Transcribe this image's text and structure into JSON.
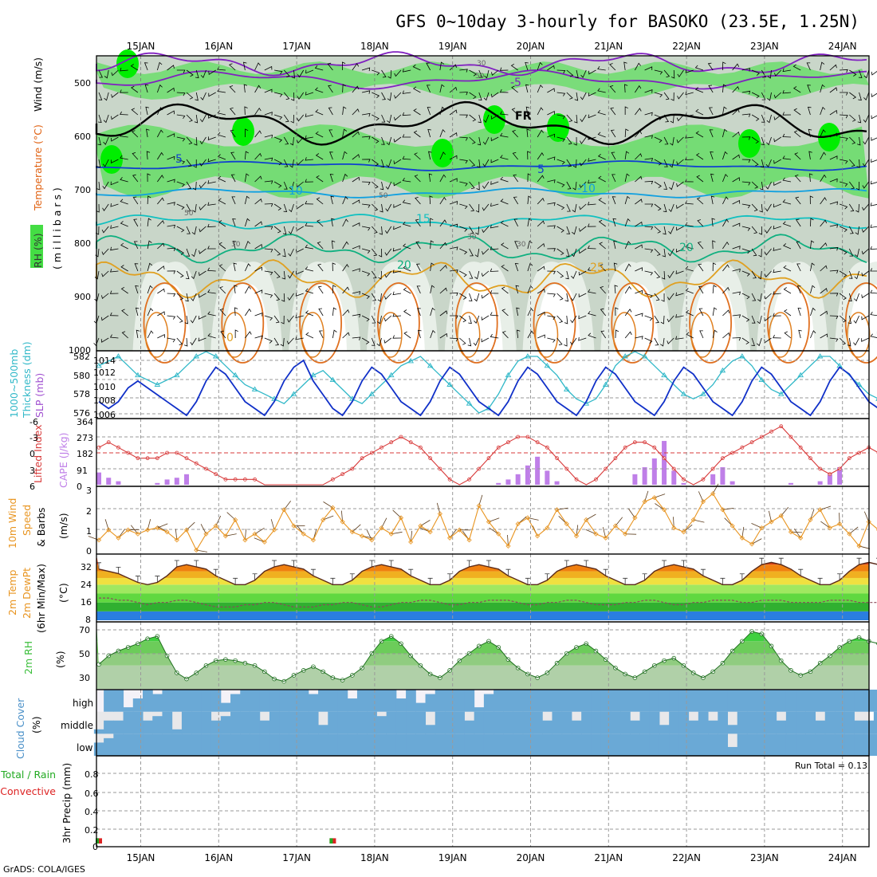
{
  "title": "GFS 0~10day 3-hourly for BASOKO (23.5E, 1.25N)",
  "footer": "GrADS: COLA/IGES",
  "dates": [
    "15JAN",
    "16JAN",
    "17JAN",
    "18JAN",
    "19JAN",
    "20JAN",
    "21JAN",
    "22JAN",
    "23JAN",
    "24JAN"
  ],
  "colors": {
    "frame": "#000000",
    "grid": "#9a9a9a",
    "rh_dark": "#b4c7b4",
    "rh_mid": "#cfe0cf",
    "rh_green": "#66dd66",
    "rh_bright": "#00ee00",
    "lifted": "#d83a3a",
    "cape": "#bf7fe8",
    "thickness": "#30b8c8",
    "slp": "#1030c8",
    "wind": "#e8941f",
    "cloud": "#6aa9d6",
    "rh2m": "#3cbf3c",
    "precip_rain": "#22aa22",
    "precip_conv": "#dd2222"
  },
  "panels": {
    "upper": {
      "labels": {
        "rh": "RH (%)",
        "temp": "Temperature (°C)",
        "wind": "Wind (m/s)",
        "pressure": "( m i l l i b a r s )"
      },
      "y_ticks": [
        "500",
        "600",
        "700",
        "800",
        "900",
        "1000"
      ],
      "contour_labels": {
        "fr": "FR",
        "m5": "-5",
        "t5a": "5",
        "t5b": "5",
        "t10a": "10",
        "t10b": "-10",
        "t15": "15",
        "t20a": "20",
        "t20b": "20",
        "t25": "25",
        "t0": "0",
        "rh30a": "30",
        "rh50a": "50",
        "rh50b": "50",
        "rh30b": "30",
        "rh30c": "30",
        "rh50c": "50",
        "rh30d": "30"
      }
    },
    "thickness": {
      "label_a": "1000~500mb",
      "label_b": "Thickness (dm)",
      "label_c": "SLP (mb)",
      "left_ticks": [
        "582",
        "580",
        "578",
        "576"
      ],
      "right_ticks": [
        "1014",
        "1012",
        "1010",
        "1008",
        "1006"
      ]
    },
    "lifted": {
      "label_a": "Lifted Index",
      "label_b": "CAPE (J/kg)",
      "left_ticks": [
        "-6",
        "-3",
        "0",
        "3",
        "6"
      ],
      "right_ticks": [
        "364",
        "273",
        "182",
        "91",
        "0"
      ]
    },
    "wind10": {
      "label_a": "10m Wind",
      "label_b": "Speed",
      "label_c": "& Barbs",
      "unit": "(m/s)",
      "ticks": [
        "3",
        "2",
        "1",
        "0"
      ]
    },
    "temp2m": {
      "label_a": "2m Temp",
      "label_b": "2m DewPt",
      "label_c": "(6hr Min/Max)",
      "unit": "(°C)",
      "ticks": [
        "32",
        "24",
        "16",
        "8"
      ]
    },
    "rh2m": {
      "label": "2m RH",
      "unit": "(%)",
      "ticks": [
        "70",
        "50",
        "30"
      ]
    },
    "cloud": {
      "label": "Cloud Cover",
      "unit": "(%)",
      "levels": [
        "high",
        "middle",
        "low"
      ]
    },
    "precip": {
      "label_a": "Total / Rain",
      "label_b": "Convective",
      "label_c": "3hr Precip (mm)",
      "run_total": "Run Total = 0.13",
      "ticks": [
        "0.8",
        "0.6",
        "0.4",
        "0.2",
        "0"
      ]
    }
  },
  "chart_data": {
    "type": "meteogram",
    "x": {
      "start": "15JAN",
      "step_hours": 3,
      "steps": 81
    },
    "temp2m_series": [
      {
        "name": "Max",
        "values": [
          31,
          30,
          29,
          27,
          25,
          24,
          25,
          28,
          32,
          33,
          32,
          31,
          28,
          26,
          24,
          24,
          26,
          30,
          32,
          33,
          32,
          31,
          28,
          26,
          24,
          24,
          26,
          30,
          32,
          33,
          32,
          31,
          28,
          26,
          24,
          24,
          26,
          30,
          32,
          33,
          32,
          31,
          28,
          26,
          24,
          24,
          26,
          30,
          32,
          33,
          32,
          31,
          28,
          26,
          24,
          24,
          26,
          30,
          32,
          33,
          32,
          31,
          28,
          26,
          24,
          24,
          26,
          30,
          33,
          34,
          33,
          31,
          28,
          26,
          24,
          24,
          26,
          30,
          33,
          34,
          33
        ]
      },
      {
        "name": "DewPt",
        "values": [
          18,
          18,
          17,
          17,
          16,
          15,
          16,
          16,
          17,
          17,
          16,
          15,
          14,
          14,
          14,
          15,
          15,
          16,
          16,
          15,
          14,
          14,
          14,
          15,
          15,
          16,
          16,
          15,
          14,
          14,
          15,
          16,
          16,
          17,
          17,
          16,
          15,
          15,
          16,
          16,
          17,
          17,
          17,
          16,
          15,
          15,
          16,
          16,
          17,
          17,
          16,
          15,
          15,
          15,
          16,
          16,
          17,
          17,
          16,
          15,
          15,
          16,
          16,
          17,
          17,
          17,
          16,
          16,
          17,
          17,
          17,
          16,
          16,
          16,
          16,
          17,
          17,
          17,
          16,
          16,
          16
        ]
      }
    ],
    "slp": {
      "name": "SLP",
      "unit": "mb",
      "values": [
        1008,
        1007,
        1008,
        1010,
        1011,
        1010,
        1009,
        1008,
        1007,
        1006,
        1008,
        1011,
        1013,
        1012,
        1010,
        1008,
        1007,
        1006,
        1008,
        1011,
        1013,
        1014,
        1011,
        1009,
        1007,
        1006,
        1008,
        1011,
        1013,
        1012,
        1010,
        1008,
        1007,
        1006,
        1008,
        1011,
        1013,
        1012,
        1010,
        1008,
        1007,
        1006,
        1008,
        1011,
        1013,
        1012,
        1010,
        1008,
        1007,
        1006,
        1008,
        1011,
        1013,
        1012,
        1010,
        1008,
        1007,
        1006,
        1008,
        1011,
        1013,
        1012,
        1010,
        1008,
        1007,
        1006,
        1008,
        1011,
        1013,
        1012,
        1010,
        1008,
        1007,
        1006,
        1008,
        1011,
        1013,
        1012,
        1010,
        1008,
        1007
      ]
    },
    "thickness": {
      "name": "Thickness",
      "unit": "dm",
      "values": [
        581,
        581.5,
        582,
        581,
        580,
        579.5,
        579,
        579.5,
        580,
        581,
        582,
        582.5,
        582,
        581,
        580,
        579,
        578.5,
        578,
        577.5,
        577,
        578,
        579,
        580,
        580.5,
        579.5,
        578.5,
        577.5,
        577,
        578,
        579,
        580,
        581,
        581.5,
        582,
        581,
        580,
        579,
        578,
        577,
        576,
        576.5,
        578,
        580,
        581.5,
        582,
        582,
        581,
        580,
        578.5,
        577.5,
        577,
        577.5,
        579,
        581,
        582,
        582.5,
        582,
        581,
        580,
        579,
        578,
        577.5,
        578,
        579,
        580.5,
        581.5,
        582,
        581,
        579.5,
        578.5,
        578,
        579,
        580,
        581,
        582,
        582,
        581,
        580,
        579,
        578,
        577.5
      ]
    },
    "lifted_index": {
      "name": "Lifted Index",
      "values": [
        -1,
        -2,
        -1,
        0,
        1,
        1,
        1,
        0,
        0,
        1,
        2,
        3,
        4,
        5,
        5,
        5,
        5,
        6,
        6,
        6,
        6,
        6,
        6,
        6,
        5,
        4,
        3,
        1,
        0,
        -1,
        -2,
        -3,
        -2,
        -1,
        1,
        3,
        5,
        6,
        5,
        3,
        1,
        -1,
        -2,
        -3,
        -3,
        -2,
        -1,
        1,
        3,
        5,
        6,
        5,
        3,
        1,
        -1,
        -2,
        -2,
        -1,
        1,
        3,
        5,
        6,
        5,
        3,
        1,
        0,
        -1,
        -2,
        -3,
        -4,
        -5,
        -3,
        -1,
        1,
        3,
        4,
        3,
        1,
        0,
        -1,
        0
      ]
    },
    "cape": {
      "name": "CAPE",
      "unit": "J/kg",
      "values": [
        70,
        40,
        20,
        0,
        0,
        0,
        10,
        30,
        40,
        60,
        0,
        0,
        0,
        0,
        0,
        0,
        0,
        0,
        0,
        0,
        0,
        0,
        0,
        0,
        0,
        0,
        0,
        0,
        0,
        0,
        0,
        0,
        0,
        0,
        0,
        0,
        0,
        0,
        0,
        0,
        0,
        10,
        30,
        60,
        110,
        160,
        80,
        20,
        0,
        0,
        0,
        0,
        0,
        0,
        0,
        60,
        100,
        150,
        250,
        80,
        10,
        0,
        0,
        60,
        100,
        20,
        0,
        0,
        0,
        0,
        0,
        10,
        0,
        0,
        20,
        60,
        100,
        0,
        0,
        0,
        0
      ]
    },
    "wind10_speed": {
      "name": "10m Wind Speed",
      "unit": "m/s",
      "values": [
        0.5,
        1,
        0.6,
        1,
        0.8,
        1,
        1.1,
        0.9,
        0.5,
        1,
        0,
        0.8,
        1.2,
        0.7,
        1.5,
        0.5,
        0.8,
        0.4,
        1,
        2,
        1.2,
        0.8,
        0.5,
        1.5,
        2.1,
        1.4,
        0.9,
        0.7,
        0.5,
        1.1,
        0.8,
        1.6,
        0.4,
        1.2,
        0.9,
        1.8,
        0.6,
        1,
        0.5,
        2.2,
        1.4,
        0.8,
        0.2,
        1.3,
        1.6,
        0.7,
        1.1,
        2,
        1.3,
        0.7,
        1.5,
        0.8,
        0.6,
        1.2,
        0.8,
        1.6,
        2.4,
        2.6,
        2,
        1.1,
        0.9,
        1.5,
        2.4,
        2.8,
        2,
        1.2,
        0.6,
        0.3,
        1.1,
        1.4,
        1.7,
        0.9,
        0.6,
        1.5,
        2,
        1.1,
        1.3,
        0.8,
        0.2,
        1.4,
        1
      ]
    },
    "rh2m": {
      "name": "2m RH",
      "unit": "%",
      "values": [
        41,
        48,
        52,
        55,
        58,
        62,
        64,
        48,
        34,
        29,
        34,
        40,
        44,
        45,
        44,
        42,
        40,
        35,
        29,
        27,
        32,
        36,
        39,
        35,
        30,
        28,
        32,
        38,
        50,
        60,
        64,
        58,
        48,
        40,
        33,
        30,
        36,
        44,
        50,
        56,
        60,
        55,
        45,
        38,
        33,
        30,
        34,
        42,
        50,
        55,
        58,
        52,
        45,
        38,
        33,
        30,
        35,
        40,
        44,
        46,
        40,
        34,
        30,
        35,
        42,
        52,
        60,
        68,
        66,
        56,
        44,
        36,
        32,
        35,
        42,
        48,
        55,
        60,
        63,
        60,
        58
      ]
    },
    "cloud": [
      {
        "name": "high",
        "values": [
          0,
          100,
          100,
          20,
          60,
          100,
          80,
          100,
          100,
          100,
          100,
          100,
          100,
          40,
          80,
          100,
          100,
          100,
          100,
          100,
          100,
          100,
          80,
          100,
          100,
          100,
          60,
          100,
          100,
          100,
          100,
          60,
          100,
          40,
          80,
          100,
          100,
          100,
          100,
          20,
          80,
          100,
          100,
          100,
          100,
          100,
          100,
          100,
          100,
          100,
          100,
          100,
          100,
          100,
          100,
          100,
          100,
          100,
          100,
          100,
          100,
          100,
          100,
          100,
          100,
          100,
          100,
          100,
          100,
          100,
          100,
          100,
          100,
          100,
          100,
          100,
          100,
          100,
          100,
          100,
          100
        ]
      },
      {
        "name": "middle",
        "values": [
          20,
          60,
          60,
          100,
          100,
          60,
          80,
          100,
          20,
          100,
          100,
          100,
          60,
          80,
          100,
          100,
          100,
          60,
          100,
          100,
          100,
          100,
          100,
          40,
          100,
          100,
          100,
          100,
          100,
          80,
          100,
          100,
          100,
          100,
          40,
          100,
          100,
          100,
          60,
          100,
          100,
          100,
          100,
          100,
          100,
          100,
          60,
          100,
          100,
          60,
          100,
          100,
          100,
          100,
          100,
          60,
          100,
          100,
          40,
          100,
          100,
          60,
          100,
          60,
          100,
          40,
          100,
          100,
          100,
          100,
          60,
          100,
          100,
          100,
          60,
          100,
          100,
          100,
          60,
          60,
          100
        ]
      },
      {
        "name": "low",
        "values": [
          60,
          80,
          100,
          100,
          100,
          100,
          100,
          100,
          100,
          100,
          100,
          100,
          100,
          100,
          100,
          100,
          100,
          100,
          100,
          100,
          100,
          100,
          100,
          100,
          100,
          100,
          100,
          100,
          100,
          100,
          100,
          100,
          100,
          100,
          100,
          100,
          100,
          100,
          100,
          100,
          100,
          100,
          100,
          100,
          100,
          100,
          100,
          100,
          100,
          100,
          100,
          100,
          100,
          100,
          100,
          100,
          100,
          100,
          100,
          100,
          100,
          100,
          100,
          100,
          100,
          40,
          100,
          100,
          100,
          100,
          100,
          100,
          100,
          100,
          100,
          100,
          100,
          100,
          100,
          100,
          100
        ]
      }
    ],
    "precip": {
      "name": "3hr Precip",
      "unit": "mm",
      "run_total": 0.13,
      "values": [
        0.06,
        0,
        0,
        0,
        0,
        0,
        0,
        0,
        0,
        0,
        0,
        0,
        0,
        0,
        0,
        0,
        0,
        0,
        0,
        0,
        0,
        0,
        0,
        0,
        0.06,
        0,
        0,
        0,
        0,
        0,
        0,
        0,
        0,
        0,
        0,
        0,
        0,
        0,
        0,
        0,
        0,
        0,
        0,
        0,
        0,
        0,
        0,
        0,
        0,
        0,
        0,
        0,
        0,
        0,
        0,
        0,
        0,
        0,
        0,
        0,
        0,
        0,
        0,
        0,
        0,
        0,
        0,
        0,
        0,
        0,
        0,
        0,
        0,
        0,
        0,
        0,
        0,
        0,
        0,
        0,
        0
      ]
    }
  }
}
